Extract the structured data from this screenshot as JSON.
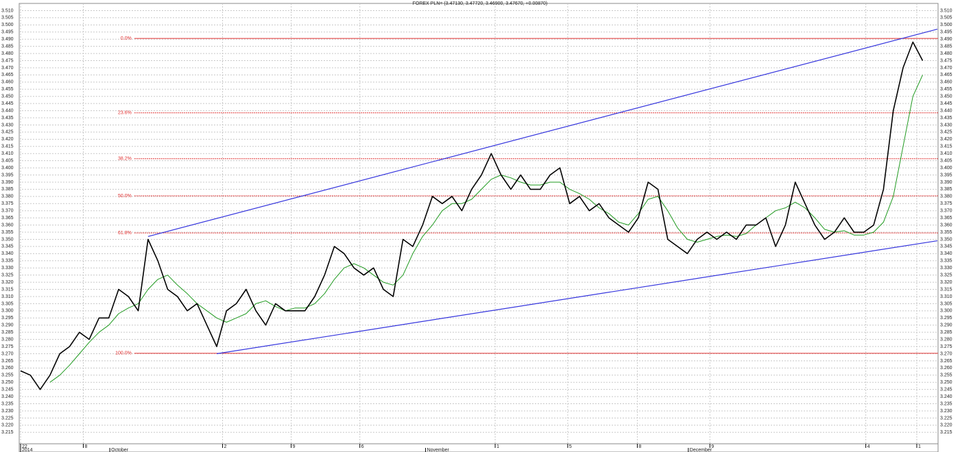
{
  "chart_data": {
    "type": "line",
    "title": "FOREX PLN= (3.47130, 3.47720, 3.46900, 3.47670, +0.00870)",
    "x": [
      0,
      1,
      2,
      3,
      4,
      5,
      6,
      7,
      8,
      9,
      10,
      11,
      12,
      13,
      14,
      15,
      16,
      17,
      18,
      19,
      20,
      21,
      22,
      23,
      24,
      25,
      26,
      27,
      28,
      29,
      30,
      31,
      32,
      33,
      34,
      35,
      36,
      37,
      38,
      39,
      40,
      41,
      42,
      43,
      44,
      45,
      46,
      47,
      48,
      49,
      50,
      51,
      52,
      53,
      54,
      55,
      56,
      57,
      58,
      59,
      60,
      61,
      62,
      63,
      64,
      65,
      66,
      67,
      68,
      69,
      70,
      71,
      72,
      73,
      74,
      75,
      76,
      77,
      78,
      79,
      80,
      81,
      82,
      83,
      84,
      85,
      86,
      87,
      88,
      89,
      90,
      91,
      92
    ],
    "series": [
      {
        "color": "#000000",
        "values": [
          3.258,
          3.255,
          3.245,
          3.255,
          3.27,
          3.275,
          3.285,
          3.28,
          3.295,
          3.295,
          3.315,
          3.31,
          3.3,
          3.35,
          3.335,
          3.315,
          3.31,
          3.3,
          3.305,
          3.29,
          3.275,
          3.3,
          3.305,
          3.315,
          3.3,
          3.29,
          3.305,
          3.3,
          3.3,
          3.3,
          3.31,
          3.325,
          3.345,
          3.34,
          3.33,
          3.325,
          3.33,
          3.315,
          3.31,
          3.35,
          3.345,
          3.36,
          3.38,
          3.375,
          3.38,
          3.37,
          3.385,
          3.395,
          3.41,
          3.395,
          3.385,
          3.395,
          3.385,
          3.385,
          3.395,
          3.4,
          3.375,
          3.38,
          3.37,
          3.375,
          3.365,
          3.36,
          3.355,
          3.365,
          3.39,
          3.385,
          3.35,
          3.345,
          3.34,
          3.35,
          3.355,
          3.35,
          3.355,
          3.35,
          3.36,
          3.36,
          3.365,
          3.345,
          3.36,
          3.39,
          3.375,
          3.36,
          3.35,
          3.355,
          3.365,
          3.355,
          3.355,
          3.36,
          3.385,
          3.44,
          3.47,
          3.488,
          3.475
        ]
      },
      {
        "color": "#1f9a1f",
        "values": [
          null,
          null,
          null,
          3.25,
          3.255,
          3.262,
          3.27,
          3.278,
          3.285,
          3.29,
          3.298,
          3.302,
          3.305,
          3.315,
          3.322,
          3.325,
          3.318,
          3.312,
          3.305,
          3.3,
          3.295,
          3.292,
          3.295,
          3.298,
          3.305,
          3.307,
          3.303,
          3.3,
          3.302,
          3.302,
          3.305,
          3.312,
          3.322,
          3.33,
          3.333,
          3.33,
          3.325,
          3.32,
          3.318,
          3.325,
          3.34,
          3.352,
          3.36,
          3.37,
          3.375,
          3.375,
          3.378,
          3.385,
          3.392,
          3.395,
          3.393,
          3.39,
          3.388,
          3.388,
          3.39,
          3.39,
          3.385,
          3.382,
          3.378,
          3.372,
          3.368,
          3.362,
          3.36,
          3.368,
          3.378,
          3.38,
          3.37,
          3.358,
          3.35,
          3.348,
          3.35,
          3.352,
          3.353,
          3.352,
          3.354,
          3.36,
          3.365,
          3.37,
          3.372,
          3.376,
          3.372,
          3.365,
          3.357,
          3.355,
          3.356,
          3.353,
          3.353,
          3.355,
          3.362,
          3.38,
          3.415,
          3.45,
          3.465
        ]
      }
    ],
    "trendlines": [
      {
        "color": "#3333dd",
        "x": [
          13,
          93.5
        ],
        "y": [
          3.352,
          3.497
        ]
      },
      {
        "color": "#3333dd",
        "x": [
          20,
          93.5
        ],
        "y": [
          3.27,
          3.349
        ]
      }
    ],
    "fib_color": "#e03030",
    "fib_start": 11.6,
    "fib_levels": [
      {
        "label": "0.0%",
        "value": 3.4905
      },
      {
        "label": "23.6%",
        "value": 3.4385
      },
      {
        "label": "38.2%",
        "value": 3.4064
      },
      {
        "label": "50.0%",
        "value": 3.3804
      },
      {
        "label": "61.8%",
        "value": 3.3545
      },
      {
        "label": "100.0%",
        "value": 3.2703
      }
    ],
    "xlim": [
      -0.14,
      93.57
    ],
    "xticks": [
      {
        "value": 0,
        "label": "22"
      },
      {
        "value": 6.4,
        "label": "8"
      },
      {
        "value": 20.6,
        "label": "2"
      },
      {
        "value": 27.6,
        "label": "9"
      },
      {
        "value": 34.6,
        "label": "6"
      },
      {
        "value": 48.4,
        "label": "1"
      },
      {
        "value": 55.8,
        "label": "5"
      },
      {
        "value": 62.9,
        "label": "8"
      },
      {
        "value": 70.3,
        "label": "9"
      },
      {
        "value": 86.2,
        "label": "4"
      },
      {
        "value": 91.4,
        "label": "1"
      }
    ],
    "xticks_major": [
      {
        "value": 0,
        "label": "2014"
      },
      {
        "value": 9.1,
        "label": "October"
      },
      {
        "value": 41.3,
        "label": "November"
      },
      {
        "value": 68.1,
        "label": "December"
      }
    ],
    "ylim": [
      3.207,
      3.515
    ],
    "yticks": [
      3.215,
      {
        "value": 3.22,
        "label": "3.220"
      },
      3.225,
      {
        "value": 3.23,
        "label": "3.230"
      },
      3.235,
      {
        "value": 3.24,
        "label": "3.240"
      },
      3.245,
      {
        "value": 3.25,
        "label": "3.250"
      },
      3.255,
      {
        "value": 3.26,
        "label": "3.260"
      },
      3.265,
      {
        "value": 3.27,
        "label": "3.270"
      },
      3.275,
      {
        "value": 3.28,
        "label": "3.280"
      },
      3.285,
      {
        "value": 3.29,
        "label": "3.290"
      },
      3.295,
      {
        "value": 3.3,
        "label": "3.300"
      },
      3.305,
      {
        "value": 3.31,
        "label": "3.310"
      },
      3.315,
      {
        "value": 3.32,
        "label": "3.320"
      },
      3.325,
      {
        "value": 3.33,
        "label": "3.330"
      },
      3.335,
      {
        "value": 3.34,
        "label": "3.340"
      },
      3.345,
      {
        "value": 3.35,
        "label": "3.350"
      },
      3.355,
      {
        "value": 3.36,
        "label": "3.360"
      },
      3.365,
      {
        "value": 3.37,
        "label": "3.370"
      },
      3.375,
      {
        "value": 3.38,
        "label": "3.380"
      },
      3.385,
      {
        "value": 3.39,
        "label": "3.390"
      },
      3.395,
      {
        "value": 3.4,
        "label": "3.400"
      },
      3.405,
      {
        "value": 3.41,
        "label": "3.410"
      },
      3.415,
      {
        "value": 3.42,
        "label": "3.420"
      },
      3.425,
      {
        "value": 3.43,
        "label": "3.430"
      },
      3.435,
      {
        "value": 3.44,
        "label": "3.440"
      },
      3.445,
      {
        "value": 3.45,
        "label": "3.450"
      },
      3.455,
      {
        "value": 3.46,
        "label": "3.460"
      },
      3.465,
      {
        "value": 3.47,
        "label": "3.470"
      },
      3.475,
      {
        "value": 3.48,
        "label": "3.480"
      },
      3.485,
      {
        "value": 3.49,
        "label": "3.490"
      },
      3.495,
      {
        "value": 3.5,
        "label": "3.500"
      },
      3.505,
      {
        "value": 3.51,
        "label": "3.510"
      }
    ],
    "grid": true
  }
}
